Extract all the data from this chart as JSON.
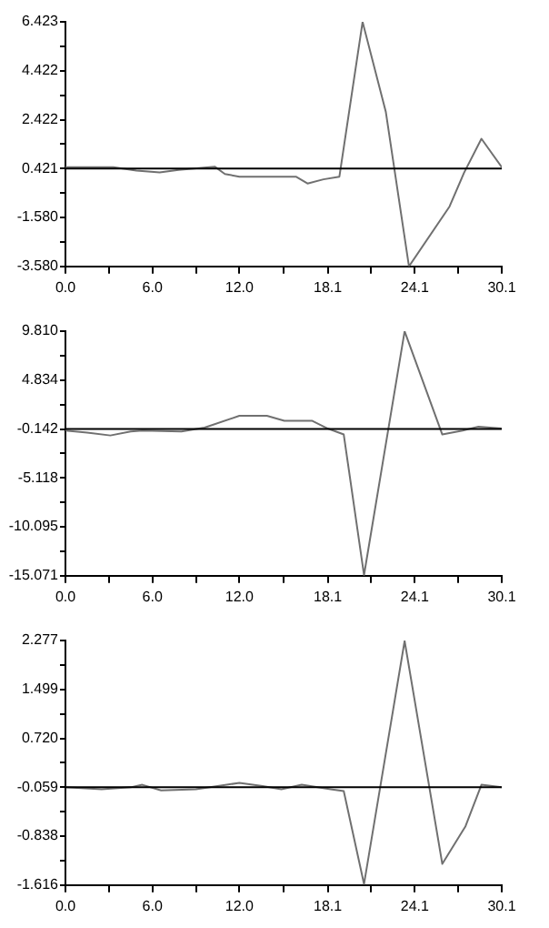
{
  "chart_data": [
    {
      "type": "line",
      "xlim": [
        0,
        30.1
      ],
      "ylim": [
        -3.58,
        6.423
      ],
      "xticks": [
        {
          "value": 0,
          "label": "0.0"
        },
        {
          "value": 3.0,
          "label": null
        },
        {
          "value": 6,
          "label": "6.0"
        },
        {
          "value": 9.0,
          "label": null
        },
        {
          "value": 12,
          "label": "12.0"
        },
        {
          "value": 15.05,
          "label": null
        },
        18.1,
        {
          "value": 21.1,
          "label": null
        },
        24.1,
        {
          "value": 27.1,
          "label": null
        },
        30.1
      ],
      "yticks": [
        {
          "value": -3.58,
          "label": "-3.580"
        },
        {
          "value": -2.58,
          "label": null
        },
        {
          "value": -1.58,
          "label": "-1.580"
        },
        {
          "value": -0.58,
          "label": null
        },
        0.421,
        {
          "value": 1.42,
          "label": null
        },
        2.422,
        {
          "value": 3.42,
          "label": null
        },
        4.422,
        {
          "value": 5.42,
          "label": null
        },
        6.423
      ],
      "grid": false,
      "legend": false,
      "marker": "none",
      "line_style": "solid",
      "ref_lines": [
        {
          "axis": "y",
          "value": 0.421,
          "color": "#000000"
        }
      ],
      "series": [
        {
          "color": "#707070",
          "x": [
            0,
            3.3,
            4.9,
            6.5,
            7.8,
            10.3,
            11.0,
            12.0,
            15.9,
            16.7,
            17.8,
            18.9,
            20.5,
            22.1,
            23.7,
            26.5,
            27.5,
            28.7,
            30.1
          ],
          "values": [
            0.48,
            0.48,
            0.34,
            0.26,
            0.37,
            0.5,
            0.2,
            0.09,
            0.09,
            -0.19,
            -0.02,
            0.09,
            6.42,
            2.75,
            -3.58,
            -1.13,
            0.25,
            1.64,
            0.48
          ]
        }
      ]
    },
    {
      "type": "line",
      "xlim": [
        0,
        30.1
      ],
      "ylim": [
        -15.071,
        9.81
      ],
      "xticks": [
        {
          "value": 0,
          "label": "0.0"
        },
        {
          "value": 3.0,
          "label": null
        },
        {
          "value": 6,
          "label": "6.0"
        },
        {
          "value": 9.0,
          "label": null
        },
        {
          "value": 12,
          "label": "12.0"
        },
        {
          "value": 15.05,
          "label": null
        },
        18.1,
        {
          "value": 21.1,
          "label": null
        },
        24.1,
        {
          "value": 27.1,
          "label": null
        },
        30.1
      ],
      "yticks": [
        -15.071,
        {
          "value": -12.58,
          "label": null
        },
        -10.095,
        {
          "value": -7.61,
          "label": null
        },
        -5.118,
        {
          "value": -2.63,
          "label": null
        },
        -0.142,
        {
          "value": 2.35,
          "label": null
        },
        4.834,
        {
          "value": 7.32,
          "label": null
        },
        {
          "value": 9.81,
          "label": "9.810"
        }
      ],
      "grid": false,
      "legend": false,
      "marker": "none",
      "line_style": "solid",
      "ref_lines": [
        {
          "axis": "y",
          "value": -0.142,
          "color": "#000000"
        }
      ],
      "series": [
        {
          "color": "#707070",
          "x": [
            0,
            1.5,
            3.1,
            4.5,
            5.3,
            8.0,
            9.6,
            12.0,
            13.9,
            15.1,
            17.0,
            18.1,
            19.2,
            20.6,
            23.4,
            26.0,
            27.4,
            28.5,
            30.1
          ],
          "values": [
            -0.3,
            -0.5,
            -0.8,
            -0.4,
            -0.3,
            -0.4,
            0.0,
            1.2,
            1.2,
            0.7,
            0.7,
            -0.1,
            -0.7,
            -15.0,
            9.8,
            -0.7,
            -0.3,
            0.1,
            -0.1
          ]
        }
      ]
    },
    {
      "type": "line",
      "xlim": [
        0,
        30.1
      ],
      "ylim": [
        -1.616,
        2.277
      ],
      "xticks": [
        {
          "value": 0,
          "label": "0.0"
        },
        {
          "value": 3.0,
          "label": null
        },
        {
          "value": 6,
          "label": "6.0"
        },
        {
          "value": 9.0,
          "label": null
        },
        {
          "value": 12,
          "label": "12.0"
        },
        {
          "value": 15.05,
          "label": null
        },
        18.1,
        {
          "value": 21.1,
          "label": null
        },
        24.1,
        {
          "value": 27.1,
          "label": null
        },
        30.1
      ],
      "yticks": [
        -1.616,
        {
          "value": -1.23,
          "label": null
        },
        -0.838,
        {
          "value": -0.45,
          "label": null
        },
        -0.059,
        {
          "value": 0.33,
          "label": null
        },
        {
          "value": 0.72,
          "label": "0.720"
        },
        {
          "value": 1.11,
          "label": null
        },
        1.499,
        {
          "value": 1.89,
          "label": null
        },
        2.277
      ],
      "grid": false,
      "legend": false,
      "marker": "none",
      "line_style": "solid",
      "ref_lines": [
        {
          "axis": "y",
          "value": -0.059,
          "color": "#000000"
        }
      ],
      "series": [
        {
          "color": "#707070",
          "x": [
            0,
            2.5,
            4.5,
            5.3,
            6.6,
            9.0,
            10.5,
            12.0,
            13.6,
            14.9,
            16.3,
            18.3,
            19.2,
            20.6,
            23.4,
            26.0,
            27.6,
            28.7,
            30.1
          ],
          "values": [
            -0.06,
            -0.09,
            -0.06,
            -0.02,
            -0.11,
            -0.09,
            -0.04,
            0.01,
            -0.04,
            -0.09,
            -0.02,
            -0.09,
            -0.12,
            -1.6,
            2.27,
            -1.28,
            -0.68,
            -0.02,
            -0.06
          ]
        }
      ]
    }
  ]
}
